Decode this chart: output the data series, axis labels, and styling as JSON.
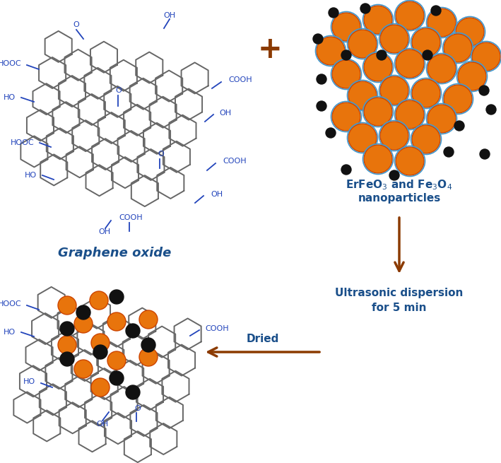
{
  "graphene_oxide_label": "Graphene oxide",
  "nanoparticles_label_line1": "ErFeO$_3$ and Fe$_3$O$_4$",
  "nanoparticles_label_line2": "nanoparticles",
  "arrow_down_label_line1": "Ultrasonic dispersion",
  "arrow_down_label_line2": "for 5 min",
  "arrow_left_label": "Dried",
  "label_color": "#1a4f8a",
  "arrow_color": "#8b3a00",
  "hex_color": "#666666",
  "bond_color": "#2244bb",
  "orange_color": "#e8740c",
  "orange_edge_color": "#cc4400",
  "orange_ring_color": "#4499cc",
  "black_dot_color": "#111111",
  "func_group_color": "#2244bb",
  "plus_color": "#8b3a00",
  "bg_color": "#ffffff",
  "figw": 7.09,
  "figh": 6.55,
  "dpi": 100
}
